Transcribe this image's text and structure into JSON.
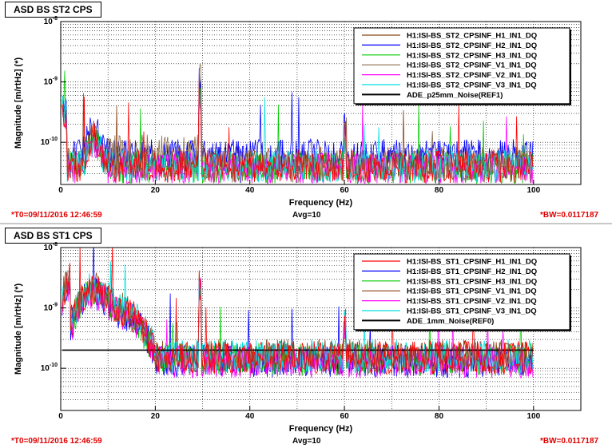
{
  "panels": [
    {
      "title": "ASD BS ST2 CPS",
      "footer": {
        "t0": "*T0=09/11/2016 12:46:59",
        "avg": "Avg=10",
        "bw": "*BW=0.0117187"
      },
      "chart_data": {
        "type": "line",
        "xlabel": "Frequency (Hz)",
        "ylabel": "Magnitude [m/rtHz] (*)",
        "xlim": [
          0,
          110
        ],
        "ylim": [
          2e-11,
          1e-08
        ],
        "log_y": true,
        "grid": true,
        "legend_position": "top-right",
        "x_ticks": [
          "0",
          "20",
          "40",
          "60",
          "80",
          "100"
        ],
        "y_ticks": [
          {
            "base": "10",
            "exp": "-8",
            "value": 1e-08
          },
          {
            "base": "10",
            "exp": "-9",
            "value": 1e-09
          },
          {
            "base": "10",
            "exp": "-10",
            "value": 1e-10
          }
        ],
        "series": [
          {
            "name": "H1:ISI-BS_ST2_CPSINF_H1_IN1_DQ",
            "color": "#8b4513",
            "floor": 4.5e-11
          },
          {
            "name": "H1:ISI-BS_ST2_CPSINF_H2_IN1_DQ",
            "color": "#0000ff",
            "floor": 6e-11
          },
          {
            "name": "H1:ISI-BS_ST2_CPSINF_H3_IN1_DQ",
            "color": "#00cc00",
            "floor": 3.8e-11
          },
          {
            "name": "H1:ISI-BS_ST2_CPSINF_V1_IN1_DQ",
            "color": "#8b6b4b",
            "floor": 4e-11
          },
          {
            "name": "H1:ISI-BS_ST2_CPSINF_V2_IN1_DQ",
            "color": "#ff00ff",
            "floor": 3.6e-11
          },
          {
            "name": "H1:ISI-BS_ST2_CPSINF_V3_IN1_DQ",
            "color": "#00e0e0",
            "floor": 4e-11
          },
          {
            "name": "ADE_p25mm_Noise(REF1)",
            "color": "#000000",
            "floor": null
          },
          {
            "name": "",
            "color": "#ff0000",
            "floor": 4e-11
          }
        ]
      }
    },
    {
      "title": "ASD BS ST1 CPS",
      "footer": {
        "t0": "*T0=09/11/2016 12:46:59",
        "avg": "Avg=10",
        "bw": "*BW=0.0117187"
      },
      "chart_data": {
        "type": "line",
        "xlabel": "Frequency (Hz)",
        "ylabel": "Magnitude [m/rtHz] (*)",
        "xlim": [
          0,
          110
        ],
        "ylim": [
          2e-11,
          1e-08
        ],
        "log_y": true,
        "grid": true,
        "legend_position": "top-right",
        "x_ticks": [
          "0",
          "20",
          "40",
          "60",
          "80",
          "100"
        ],
        "y_ticks": [
          {
            "base": "10",
            "exp": "-8",
            "value": 1e-08
          },
          {
            "base": "10",
            "exp": "-9",
            "value": 1e-09
          },
          {
            "base": "10",
            "exp": "-10",
            "value": 1e-10
          }
        ],
        "series": [
          {
            "name": "H1:ISI-BS_ST1_CPSINF_H1_IN1_DQ",
            "color": "#ff0000",
            "floor": 1.5e-10
          },
          {
            "name": "H1:ISI-BS_ST1_CPSINF_H2_IN1_DQ",
            "color": "#0000ff",
            "floor": 1.3e-10
          },
          {
            "name": "H1:ISI-BS_ST1_CPSINF_H3_IN1_DQ",
            "color": "#00cc00",
            "floor": 1.4e-10
          },
          {
            "name": "H1:ISI-BS_ST1_CPSINF_V1_IN1_DQ",
            "color": "#8b4513",
            "floor": 1.6e-10
          },
          {
            "name": "H1:ISI-BS_ST1_CPSINF_V2_IN1_DQ",
            "color": "#ff00ff",
            "floor": 1.3e-10
          },
          {
            "name": "H1:ISI-BS_ST1_CPSINF_V3_IN1_DQ",
            "color": "#00e0e0",
            "floor": 1.6e-10
          },
          {
            "name": "ADE_1mm_Noise(REF0)",
            "color": "#000000",
            "floor": 2e-10
          },
          {
            "name": "",
            "color": "#ff0000",
            "floor": 1.5e-10
          }
        ]
      }
    }
  ]
}
